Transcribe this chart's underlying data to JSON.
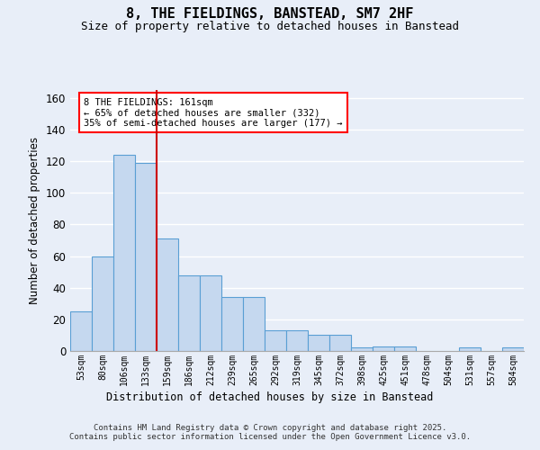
{
  "title": "8, THE FIELDINGS, BANSTEAD, SM7 2HF",
  "subtitle": "Size of property relative to detached houses in Banstead",
  "xlabel": "Distribution of detached houses by size in Banstead",
  "ylabel": "Number of detached properties",
  "bar_labels": [
    "53sqm",
    "80sqm",
    "106sqm",
    "133sqm",
    "159sqm",
    "186sqm",
    "212sqm",
    "239sqm",
    "265sqm",
    "292sqm",
    "319sqm",
    "345sqm",
    "372sqm",
    "398sqm",
    "425sqm",
    "451sqm",
    "478sqm",
    "504sqm",
    "531sqm",
    "557sqm",
    "584sqm"
  ],
  "bar_values": [
    25,
    60,
    124,
    119,
    71,
    48,
    48,
    34,
    34,
    13,
    13,
    10,
    10,
    2,
    3,
    3,
    0,
    0,
    2,
    0,
    2
  ],
  "bar_color": "#c5d8ef",
  "bar_edge_color": "#5a9fd4",
  "bg_color": "#e8eef8",
  "grid_color": "#ffffff",
  "vline_x_index": 4,
  "vline_color": "#cc0000",
  "annotation_text": "8 THE FIELDINGS: 161sqm\n← 65% of detached houses are smaller (332)\n35% of semi-detached houses are larger (177) →",
  "annotation_fontsize": 7.5,
  "ylim": [
    0,
    165
  ],
  "yticks": [
    0,
    20,
    40,
    60,
    80,
    100,
    120,
    140,
    160
  ],
  "footer_text": "Contains HM Land Registry data © Crown copyright and database right 2025.\nContains public sector information licensed under the Open Government Licence v3.0.",
  "title_fontsize": 11,
  "subtitle_fontsize": 9,
  "xlabel_fontsize": 8.5,
  "ylabel_fontsize": 8.5,
  "footer_fontsize": 6.5
}
